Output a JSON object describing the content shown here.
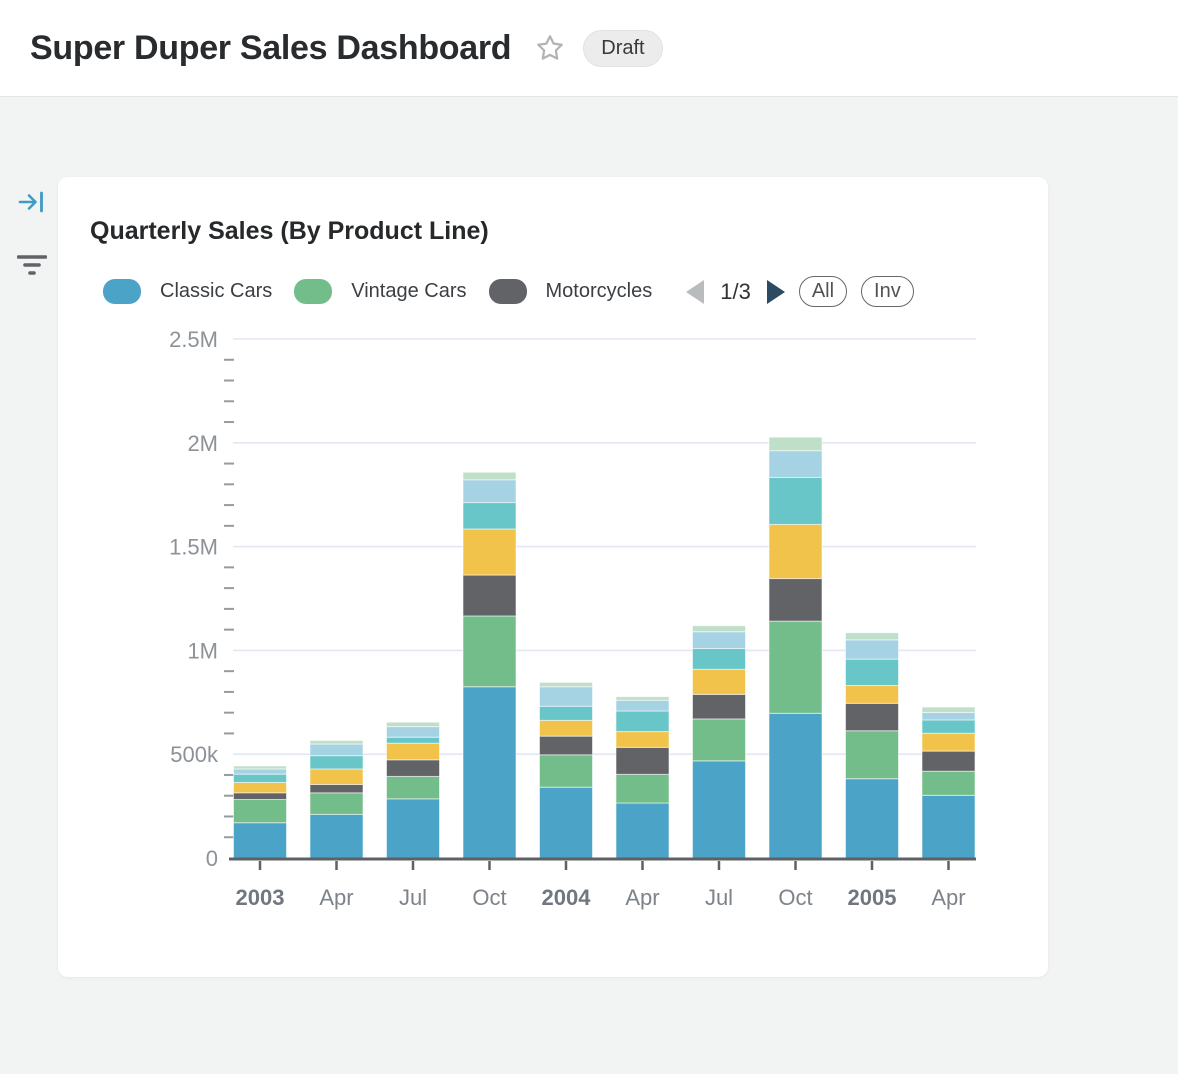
{
  "header": {
    "title": "Super Duper Sales Dashboard",
    "badge": "Draft"
  },
  "sidebar": {
    "collapse_icon": "arrow-right-to-bar",
    "collapse_color": "#3b9cc4",
    "filter_icon": "filter-lines",
    "filter_color": "#616467"
  },
  "card": {
    "title": "Quarterly Sales (By Product Line)",
    "menu_icon": "kebab-vertical",
    "pagination": {
      "current": "1/3",
      "prev_enabled": false,
      "next_enabled": true
    },
    "buttons": {
      "all_label": "All",
      "inv_label": "Inv"
    }
  },
  "chart_data": {
    "type": "bar",
    "variant": "stacked",
    "title": "Quarterly Sales (By Product Line)",
    "values_unit": "thousands",
    "categories": [
      {
        "label": "2003",
        "bold": true
      },
      {
        "label": "Apr",
        "bold": false
      },
      {
        "label": "Jul",
        "bold": false
      },
      {
        "label": "Oct",
        "bold": false
      },
      {
        "label": "2004",
        "bold": true
      },
      {
        "label": "Apr",
        "bold": false
      },
      {
        "label": "Jul",
        "bold": false
      },
      {
        "label": "Oct",
        "bold": false
      },
      {
        "label": "2005",
        "bold": true
      },
      {
        "label": "Apr",
        "bold": false
      }
    ],
    "series": [
      {
        "name": "Classic Cars",
        "color": "#4BA4C7",
        "in_visible_legend": true,
        "values": [
          170,
          210,
          285,
          825,
          341,
          265,
          468,
          697,
          382,
          302
        ]
      },
      {
        "name": "Vintage Cars",
        "color": "#73BD8B",
        "in_visible_legend": true,
        "values": [
          112,
          104,
          108,
          341,
          156,
          138,
          202,
          444,
          231,
          116
        ]
      },
      {
        "name": "Motorcycles",
        "color": "#616366",
        "in_visible_legend": true,
        "values": [
          32,
          40,
          80,
          197,
          90,
          130,
          118,
          205,
          132,
          97
        ]
      },
      {
        "name": "",
        "color": "#F2C34B",
        "in_visible_legend": false,
        "values": [
          50,
          75,
          80,
          222,
          76,
          76,
          121,
          261,
          86,
          86
        ]
      },
      {
        "name": "",
        "color": "#68C5C8",
        "in_visible_legend": false,
        "values": [
          40,
          64,
          29,
          127,
          68,
          99,
          100,
          226,
          127,
          64
        ]
      },
      {
        "name": "",
        "color": "#A6D3E4",
        "in_visible_legend": false,
        "values": [
          25,
          56,
          51,
          110,
          94,
          52,
          81,
          129,
          93,
          36
        ]
      },
      {
        "name": "",
        "color": "#BFDFC9",
        "in_visible_legend": false,
        "values": [
          14,
          17,
          21,
          36,
          21,
          17,
          29,
          65,
          34,
          26
        ]
      }
    ],
    "stack_order": "first series at bottom",
    "y_axis": {
      "tick_labels": [
        "0",
        "500k",
        "1M",
        "1.5M",
        "2M",
        "2.5M"
      ],
      "max": 2500,
      "major_step": 500,
      "minor_step": 100
    },
    "grid": true,
    "legend_position": "top",
    "legend_page": "1/3",
    "colors": {
      "gridline": "#E3E7F1",
      "axis_line": "#5D6064",
      "minor_tick": "#959BA1"
    }
  }
}
